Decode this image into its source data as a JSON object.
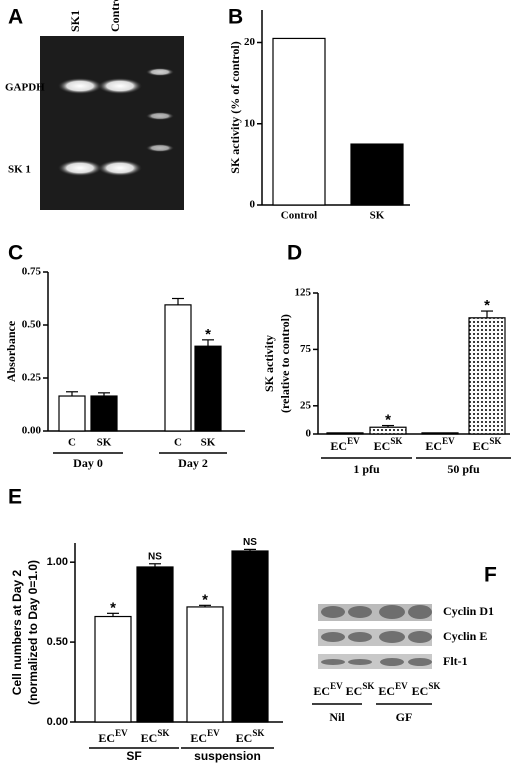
{
  "panel_letters": [
    "A",
    "B",
    "C",
    "D",
    "E",
    "F"
  ],
  "gel_a": {
    "lane_labels": [
      "SK1",
      "Control"
    ],
    "band_labels": [
      "GAPDH",
      "SK 1"
    ]
  },
  "chart_data": [
    {
      "type": "bar",
      "ylabel": "SK activity (% of control)",
      "categories": [
        "Control",
        "SK"
      ],
      "values": [
        20.5,
        7.5
      ],
      "colors": [
        "#ffffff",
        "#000000"
      ],
      "ylim": [
        0,
        24
      ],
      "yticks": [
        0,
        10,
        20
      ]
    },
    {
      "type": "bar",
      "ylabel": "Absorbance",
      "categories": [
        "C",
        "SK",
        "C",
        "SK"
      ],
      "values": [
        0.165,
        0.165,
        0.595,
        0.4
      ],
      "errors": [
        0.02,
        0.015,
        0.03,
        0.03
      ],
      "colors": [
        "#ffffff",
        "#000000",
        "#ffffff",
        "#000000"
      ],
      "annotations": [
        null,
        null,
        null,
        "*"
      ],
      "groups": [
        "Day 0",
        "Day 2"
      ],
      "ylim": [
        0,
        0.75
      ],
      "yticks": [
        {
          "value": 0,
          "label": "0.00"
        },
        {
          "value": 0.25,
          "label": "0.25"
        },
        {
          "value": 0.5,
          "label": "0.50"
        },
        {
          "value": 0.75,
          "label": "0.75"
        }
      ]
    },
    {
      "type": "bar",
      "ylabel": [
        "SK activity",
        "(relative to control)"
      ],
      "categories": [
        "EC",
        "EC",
        "EC",
        "EC"
      ],
      "category_superscripts": [
        "EV",
        "SK",
        "EV",
        "SK"
      ],
      "values": [
        1,
        6,
        1,
        103
      ],
      "errors": [
        null,
        1.5,
        null,
        6
      ],
      "colors": [
        "#ffffff",
        "dots",
        "#ffffff",
        "dots"
      ],
      "annotations": [
        null,
        "*",
        null,
        "*"
      ],
      "groups": [
        "1 pfu",
        "50 pfu"
      ],
      "ylim": [
        0,
        125
      ],
      "yticks": [
        0,
        25,
        75,
        125
      ]
    },
    {
      "type": "bar",
      "ylabel": [
        "Cell numbers at Day 2",
        "(normalized to Day 0=1.0)"
      ],
      "categories": [
        "EC",
        "EC",
        "EC",
        "EC"
      ],
      "category_superscripts": [
        "EV",
        "SK",
        "EV",
        "SK"
      ],
      "values": [
        0.66,
        0.97,
        0.72,
        1.07
      ],
      "errors": [
        0.02,
        0.02,
        0.01,
        0.01
      ],
      "colors": [
        "#ffffff",
        "#000000",
        "#ffffff",
        "#000000"
      ],
      "annotations": [
        "*",
        "NS",
        "*",
        "NS"
      ],
      "groups": [
        "SF",
        "suspension"
      ],
      "ylim": [
        0,
        1.12
      ],
      "yticks": [
        {
          "value": 0,
          "label": "0.00"
        },
        {
          "value": 0.5,
          "label": "0.50"
        },
        {
          "value": 1,
          "label": "1.00"
        }
      ]
    }
  ],
  "gel_f": {
    "band_labels": [
      "Cyclin D1",
      "Cyclin E",
      "Flt-1"
    ],
    "lane_labels": [
      "EC",
      "EC",
      "EC",
      "EC"
    ],
    "lane_superscripts": [
      "EV",
      "SK",
      "EV",
      "SK"
    ],
    "groups": [
      "Nil",
      "GF"
    ]
  }
}
